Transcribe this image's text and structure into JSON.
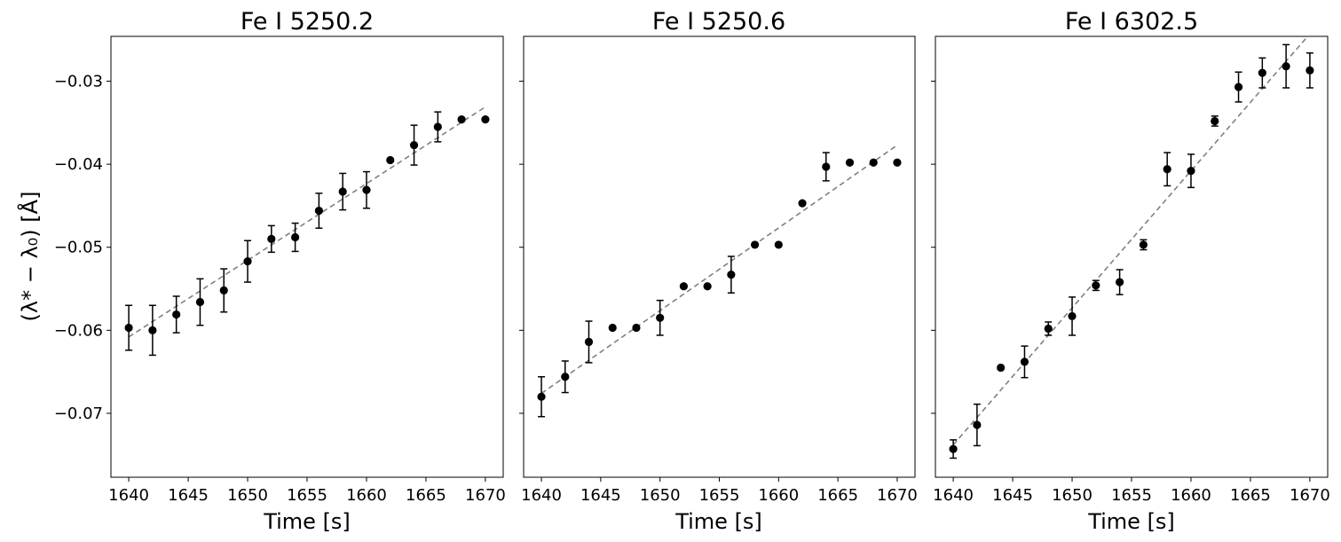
{
  "figure": {
    "ylabel": "(λ* − λ₀) [Å]"
  },
  "chart_data": [
    {
      "type": "scatter",
      "title": "Fe I 5250.2",
      "xlabel": "Time [s]",
      "ylabel": "(λ* − λ₀) [Å]",
      "xlim": [
        1638.5,
        1671.5
      ],
      "ylim": [
        -0.0777,
        -0.0246
      ],
      "xticks": [
        1640,
        1645,
        1650,
        1655,
        1660,
        1665,
        1670
      ],
      "yticks": [
        -0.07,
        -0.06,
        -0.05,
        -0.04,
        -0.03
      ],
      "series": [
        {
          "kind": "points_with_errorbars",
          "x": [
            1640,
            1642,
            1644,
            1646,
            1648,
            1650,
            1652,
            1654,
            1656,
            1658,
            1660,
            1662,
            1664,
            1666,
            1668,
            1670
          ],
          "y": [
            -0.0597,
            -0.06,
            -0.0581,
            -0.0566,
            -0.0552,
            -0.0517,
            -0.049,
            -0.0488,
            -0.0456,
            -0.0433,
            -0.0431,
            -0.0395,
            -0.0377,
            -0.0355,
            -0.0346,
            -0.0346
          ],
          "yerr": [
            0.0027,
            0.003,
            0.0022,
            0.0028,
            0.0026,
            0.0025,
            0.0016,
            0.0017,
            0.0021,
            0.0022,
            0.0022,
            0.0,
            0.0024,
            0.0018,
            0.0,
            0.0
          ],
          "color": "#000000"
        },
        {
          "kind": "fit_line",
          "style": "dashed",
          "color": "#808080",
          "x": [
            1640,
            1670
          ],
          "y": [
            -0.0608,
            -0.0331
          ]
        }
      ]
    },
    {
      "type": "scatter",
      "title": "Fe I 5250.6",
      "xlabel": "Time [s]",
      "ylabel": "",
      "xlim": [
        1638.5,
        1671.5
      ],
      "ylim": [
        -0.0777,
        -0.0246
      ],
      "xticks": [
        1640,
        1645,
        1650,
        1655,
        1660,
        1665,
        1670
      ],
      "yticks": [
        -0.07,
        -0.06,
        -0.05,
        -0.04,
        -0.03
      ],
      "series": [
        {
          "kind": "points_with_errorbars",
          "x": [
            1640,
            1642,
            1644,
            1646,
            1648,
            1650,
            1652,
            1654,
            1656,
            1658,
            1660,
            1662,
            1664,
            1666,
            1668,
            1670
          ],
          "y": [
            -0.068,
            -0.0656,
            -0.0614,
            -0.0597,
            -0.0597,
            -0.0585,
            -0.0547,
            -0.0547,
            -0.0533,
            -0.0497,
            -0.0497,
            -0.0447,
            -0.0403,
            -0.0398,
            -0.0398,
            -0.0398
          ],
          "yerr": [
            0.0024,
            0.0019,
            0.0025,
            0.0,
            0.0,
            0.0021,
            0.0,
            0.0,
            0.0022,
            0.0,
            0.0,
            0.0,
            0.0017,
            0.0,
            0.0,
            0.0
          ],
          "color": "#000000"
        },
        {
          "kind": "fit_line",
          "style": "dashed",
          "color": "#808080",
          "x": [
            1640,
            1670
          ],
          "y": [
            -0.0676,
            -0.0377
          ]
        }
      ]
    },
    {
      "type": "scatter",
      "title": "Fe I 6302.5",
      "xlabel": "Time [s]",
      "ylabel": "",
      "xlim": [
        1638.5,
        1671.5
      ],
      "ylim": [
        -0.0777,
        -0.0246
      ],
      "xticks": [
        1640,
        1645,
        1650,
        1655,
        1660,
        1665,
        1670
      ],
      "yticks": [
        -0.07,
        -0.06,
        -0.05,
        -0.04,
        -0.03
      ],
      "series": [
        {
          "kind": "points_with_errorbars",
          "x": [
            1640,
            1642,
            1644,
            1646,
            1648,
            1650,
            1652,
            1654,
            1656,
            1658,
            1660,
            1662,
            1664,
            1666,
            1668,
            1670
          ],
          "y": [
            -0.0743,
            -0.0714,
            -0.0645,
            -0.0638,
            -0.0598,
            -0.0583,
            -0.0546,
            -0.0542,
            -0.0497,
            -0.0406,
            -0.0408,
            -0.0348,
            -0.0307,
            -0.029,
            -0.0282,
            -0.0287
          ],
          "yerr": [
            0.0011,
            0.0025,
            0.0,
            0.0019,
            0.0008,
            0.0023,
            0.0006,
            0.0015,
            0.0006,
            0.002,
            0.002,
            0.0006,
            0.0018,
            0.0018,
            0.0026,
            0.0021
          ],
          "color": "#000000"
        },
        {
          "kind": "fit_line",
          "style": "dashed",
          "color": "#808080",
          "x": [
            1640,
            1670
          ],
          "y": [
            -0.0738,
            -0.0243
          ]
        }
      ]
    }
  ]
}
